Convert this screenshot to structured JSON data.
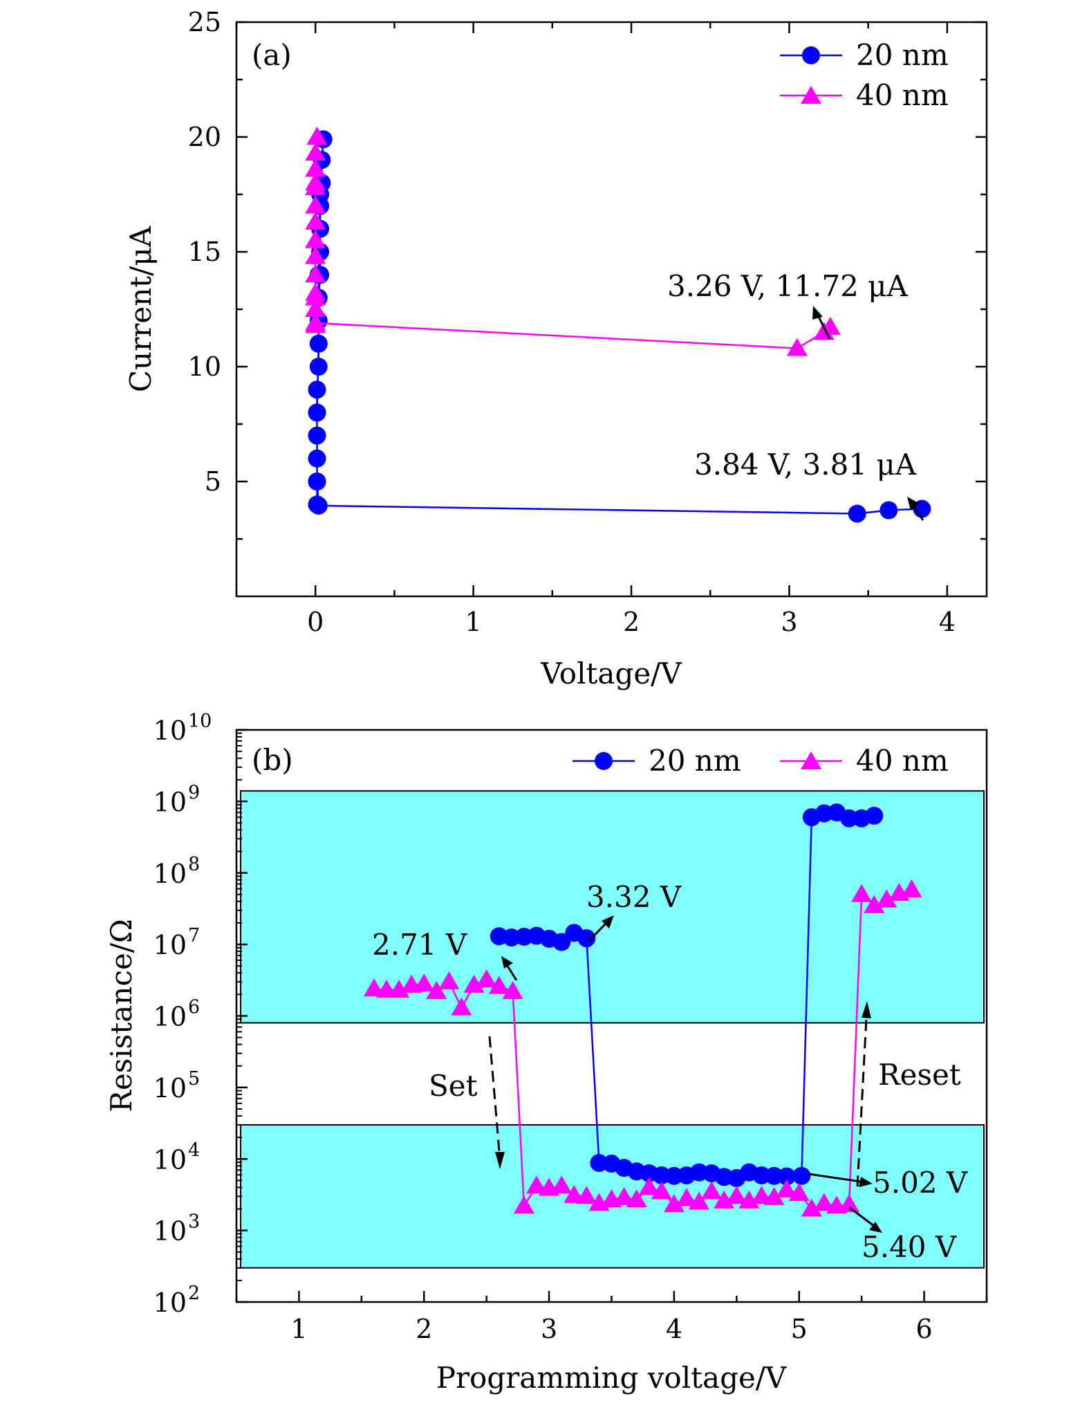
{
  "chart_data": [
    {
      "panel": "(a)",
      "type": "line",
      "xlabel": "Voltage/V",
      "ylabel": "Current/μA",
      "xlim": [
        -0.5,
        4.25
      ],
      "ylim": [
        0,
        25
      ],
      "xticks": [
        0,
        1,
        2,
        3,
        4
      ],
      "yticks": [
        5,
        10,
        15,
        20,
        25
      ],
      "legend_position": "top-right",
      "series": [
        {
          "name": "20 nm",
          "marker": "circle",
          "color": "#0000ff",
          "points": [
            [
              0.01,
              4.0
            ],
            [
              0.01,
              5.0
            ],
            [
              0.01,
              6.0
            ],
            [
              0.01,
              7.0
            ],
            [
              0.01,
              8.0
            ],
            [
              0.01,
              9.0
            ],
            [
              0.02,
              10.0
            ],
            [
              0.02,
              11.0
            ],
            [
              0.02,
              12.0
            ],
            [
              0.02,
              13.0
            ],
            [
              0.03,
              14.0
            ],
            [
              0.03,
              15.0
            ],
            [
              0.03,
              16.0
            ],
            [
              0.03,
              17.0
            ],
            [
              0.04,
              18.0
            ],
            [
              0.04,
              19.0
            ],
            [
              0.05,
              19.9
            ],
            [
              0.03,
              17.5
            ],
            [
              0.02,
              14.0
            ],
            [
              0.02,
              11.0
            ],
            [
              0.01,
              8.0
            ],
            [
              0.01,
              5.0
            ],
            [
              0.02,
              3.95
            ],
            [
              3.43,
              3.6
            ],
            [
              3.63,
              3.75
            ],
            [
              3.84,
              3.81
            ]
          ]
        },
        {
          "name": "40 nm",
          "marker": "triangle",
          "color": "#ff00ff",
          "points": [
            [
              0.0,
              11.8
            ],
            [
              0.0,
              12.5
            ],
            [
              0.0,
              13.2
            ],
            [
              0.0,
              14.0
            ],
            [
              0.0,
              14.8
            ],
            [
              0.0,
              15.5
            ],
            [
              0.0,
              16.3
            ],
            [
              0.0,
              17.0
            ],
            [
              0.0,
              17.8
            ],
            [
              0.0,
              18.6
            ],
            [
              0.0,
              19.3
            ],
            [
              0.01,
              20.0
            ],
            [
              0.0,
              18.0
            ],
            [
              0.0,
              15.5
            ],
            [
              0.0,
              13.0
            ],
            [
              0.0,
              11.9
            ],
            [
              3.05,
              10.8
            ],
            [
              3.22,
              11.5
            ],
            [
              3.26,
              11.72
            ]
          ]
        }
      ],
      "annotations": [
        "3.26 V, 11.72 μA",
        "3.84 V, 3.81 μA"
      ]
    },
    {
      "panel": "(b)",
      "type": "line",
      "xlabel": "Programming voltage/V",
      "ylabel": "Resistance/Ω",
      "yscale": "log",
      "xlim": [
        0.5,
        6.5
      ],
      "ylim": [
        100,
        10000000000
      ],
      "xticks": [
        1,
        2,
        3,
        4,
        5,
        6
      ],
      "ytick_exponents": [
        2,
        3,
        4,
        5,
        6,
        7,
        8,
        9,
        10
      ],
      "ytick_base": "10",
      "legend_position": "top-right",
      "shaded_bands": [
        {
          "y_from": 300,
          "y_to": 30000
        },
        {
          "y_from": 800000,
          "y_to": 1400000000
        }
      ],
      "band_color": "#80ffff",
      "series": [
        {
          "name": "20 nm",
          "marker": "circle",
          "color": "#0000ff",
          "x": [
            2.6,
            2.7,
            2.8,
            2.9,
            3.0,
            3.1,
            3.2,
            3.3,
            3.4,
            3.5,
            3.6,
            3.7,
            3.8,
            3.9,
            4.0,
            4.1,
            4.2,
            4.3,
            4.4,
            4.5,
            4.6,
            4.7,
            4.8,
            4.9,
            5.02,
            5.1,
            5.2,
            5.3,
            5.4,
            5.5,
            5.6
          ],
          "y": [
            13000000,
            12500000,
            12800000,
            13200000,
            12000000,
            10800000,
            14500000,
            12200000,
            8800,
            8600,
            7500,
            6700,
            6300,
            5900,
            5800,
            5900,
            6500,
            6300,
            5600,
            5400,
            6500,
            5900,
            5800,
            5700,
            5800,
            600000000,
            680000000,
            700000000,
            580000000,
            580000000,
            630000000
          ]
        },
        {
          "name": "40 nm",
          "marker": "triangle",
          "color": "#ff00ff",
          "x": [
            1.6,
            1.7,
            1.8,
            1.9,
            2.0,
            2.1,
            2.2,
            2.3,
            2.4,
            2.5,
            2.6,
            2.71,
            2.8,
            2.9,
            3.0,
            3.1,
            3.2,
            3.3,
            3.4,
            3.5,
            3.6,
            3.7,
            3.8,
            3.9,
            4.0,
            4.1,
            4.2,
            4.3,
            4.4,
            4.5,
            4.6,
            4.7,
            4.8,
            4.9,
            5.0,
            5.1,
            5.2,
            5.3,
            5.4,
            5.5,
            5.6,
            5.7,
            5.8,
            5.9
          ],
          "y": [
            2400000,
            2300000,
            2300000,
            2700000,
            2800000,
            2200000,
            3000000,
            1300000,
            2700000,
            3200000,
            2600000,
            2200000,
            2200,
            4200,
            3900,
            4200,
            3100,
            3000,
            2400,
            2700,
            2900,
            2700,
            4000,
            3500,
            2300,
            2800,
            2500,
            3500,
            2600,
            3000,
            2600,
            3000,
            2900,
            3700,
            3300,
            2000,
            2400,
            2200,
            2300,
            50000000,
            35000000,
            42000000,
            52000000,
            58000000
          ]
        }
      ],
      "annotations": [
        "2.71 V",
        "3.32 V",
        "5.02 V",
        "5.40 V",
        "Set",
        "Reset"
      ]
    }
  ]
}
